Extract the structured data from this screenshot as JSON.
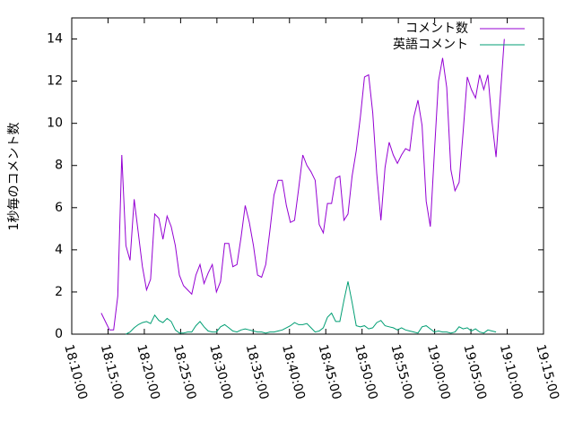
{
  "chart_data": {
    "type": "line",
    "y_label": "1秒毎のコメント数",
    "x": [
      "18:14:04",
      "18:14:38",
      "18:15:12",
      "18:15:46",
      "18:16:20",
      "18:16:54",
      "18:17:28",
      "18:18:02",
      "18:18:36",
      "18:19:10",
      "18:19:44",
      "18:20:18",
      "18:20:52",
      "18:21:26",
      "18:22:00",
      "18:22:34",
      "18:23:08",
      "18:23:42",
      "18:24:16",
      "18:24:50",
      "18:25:24",
      "18:25:58",
      "18:26:32",
      "18:27:06",
      "18:27:40",
      "18:28:14",
      "18:28:48",
      "18:29:22",
      "18:29:56",
      "18:30:30",
      "18:31:04",
      "18:31:38",
      "18:32:12",
      "18:32:46",
      "18:33:20",
      "18:33:54",
      "18:34:28",
      "18:35:02",
      "18:35:36",
      "18:36:10",
      "18:36:44",
      "18:37:18",
      "18:37:52",
      "18:38:26",
      "18:39:00",
      "18:39:34",
      "18:40:08",
      "18:40:42",
      "18:41:16",
      "18:41:50",
      "18:42:24",
      "18:42:58",
      "18:43:32",
      "18:44:06",
      "18:44:40",
      "18:45:14",
      "18:45:48",
      "18:46:22",
      "18:46:56",
      "18:47:30",
      "18:48:04",
      "18:48:38",
      "18:49:12",
      "18:49:46",
      "18:50:20",
      "18:50:54",
      "18:51:28",
      "18:52:02",
      "18:52:36",
      "18:53:10",
      "18:53:44",
      "18:54:18",
      "18:54:52",
      "18:55:26",
      "18:56:00",
      "18:56:34",
      "18:57:08",
      "18:57:42",
      "18:58:16",
      "18:58:50",
      "18:59:24",
      "18:59:58",
      "19:00:32",
      "19:01:06",
      "19:01:40",
      "19:02:14",
      "19:02:48",
      "19:03:22",
      "19:03:56",
      "19:04:30",
      "19:05:04",
      "19:05:38",
      "19:06:12",
      "19:06:46",
      "19:07:20",
      "19:07:54",
      "19:08:28",
      "19:09:02",
      "19:09:36"
    ],
    "series": [
      {
        "name": "コメント数",
        "color": "#9400d3",
        "values": [
          1.0,
          0.6,
          0.2,
          0.2,
          1.8,
          8.5,
          4.2,
          3.5,
          6.4,
          4.8,
          3.2,
          2.1,
          2.6,
          5.7,
          5.5,
          4.5,
          5.6,
          5.1,
          4.2,
          2.8,
          2.3,
          2.1,
          1.9,
          2.8,
          3.3,
          2.4,
          2.9,
          3.3,
          2.0,
          2.5,
          4.3,
          4.3,
          3.2,
          3.3,
          4.6,
          6.1,
          5.3,
          4.2,
          2.8,
          2.7,
          3.3,
          4.9,
          6.6,
          7.3,
          7.3,
          6.1,
          5.3,
          5.4,
          6.9,
          8.5,
          8.0,
          7.7,
          7.3,
          5.2,
          4.8,
          6.2,
          6.2,
          7.4,
          7.5,
          5.4,
          5.7,
          7.5,
          8.7,
          10.3,
          12.2,
          12.3,
          10.5,
          7.6,
          5.4,
          7.9,
          9.1,
          8.5,
          8.1,
          8.5,
          8.8,
          8.7,
          10.3,
          11.1,
          9.9,
          6.3,
          5.1,
          8.6,
          12.0,
          13.1,
          11.7,
          7.8,
          6.8,
          7.2,
          9.6,
          12.2,
          11.6,
          11.2,
          12.3,
          11.6,
          12.3,
          10.1,
          8.4,
          11.2,
          14.0
        ]
      },
      {
        "name": "英語コメント",
        "color": "#009e73",
        "values": [
          null,
          null,
          null,
          null,
          null,
          null,
          0.0,
          0.1,
          0.3,
          0.45,
          0.55,
          0.6,
          0.5,
          0.9,
          0.65,
          0.55,
          0.75,
          0.6,
          0.2,
          0.05,
          0.05,
          0.1,
          0.1,
          0.4,
          0.6,
          0.35,
          0.15,
          0.1,
          0.1,
          0.35,
          0.45,
          0.3,
          0.15,
          0.1,
          0.2,
          0.25,
          0.2,
          0.15,
          0.1,
          0.1,
          0.05,
          0.1,
          0.1,
          0.15,
          0.2,
          0.3,
          0.4,
          0.55,
          0.45,
          0.45,
          0.5,
          0.3,
          0.1,
          0.15,
          0.3,
          0.8,
          1.0,
          0.6,
          0.6,
          1.6,
          2.5,
          1.5,
          0.4,
          0.35,
          0.4,
          0.25,
          0.3,
          0.55,
          0.65,
          0.4,
          0.35,
          0.3,
          0.2,
          0.3,
          0.2,
          0.15,
          0.1,
          0.05,
          0.35,
          0.4,
          0.25,
          0.1,
          0.15,
          0.1,
          0.1,
          0.05,
          0.1,
          0.35,
          0.25,
          0.3,
          0.15,
          0.25,
          0.1,
          0.05,
          0.2,
          0.15,
          0.1,
          null,
          null
        ]
      }
    ],
    "xlim": [
      "18:10:00",
      "19:15:00"
    ],
    "xticks": [
      "18:10:00",
      "18:15:00",
      "18:20:00",
      "18:25:00",
      "18:30:00",
      "18:35:00",
      "18:40:00",
      "18:45:00",
      "18:50:00",
      "18:55:00",
      "19:00:00",
      "19:05:00",
      "19:10:00",
      "19:15:00"
    ],
    "ylim": [
      0,
      15
    ],
    "yticks": [
      0,
      2,
      4,
      6,
      8,
      10,
      12,
      14
    ],
    "legend": "top-right",
    "grid": false
  }
}
